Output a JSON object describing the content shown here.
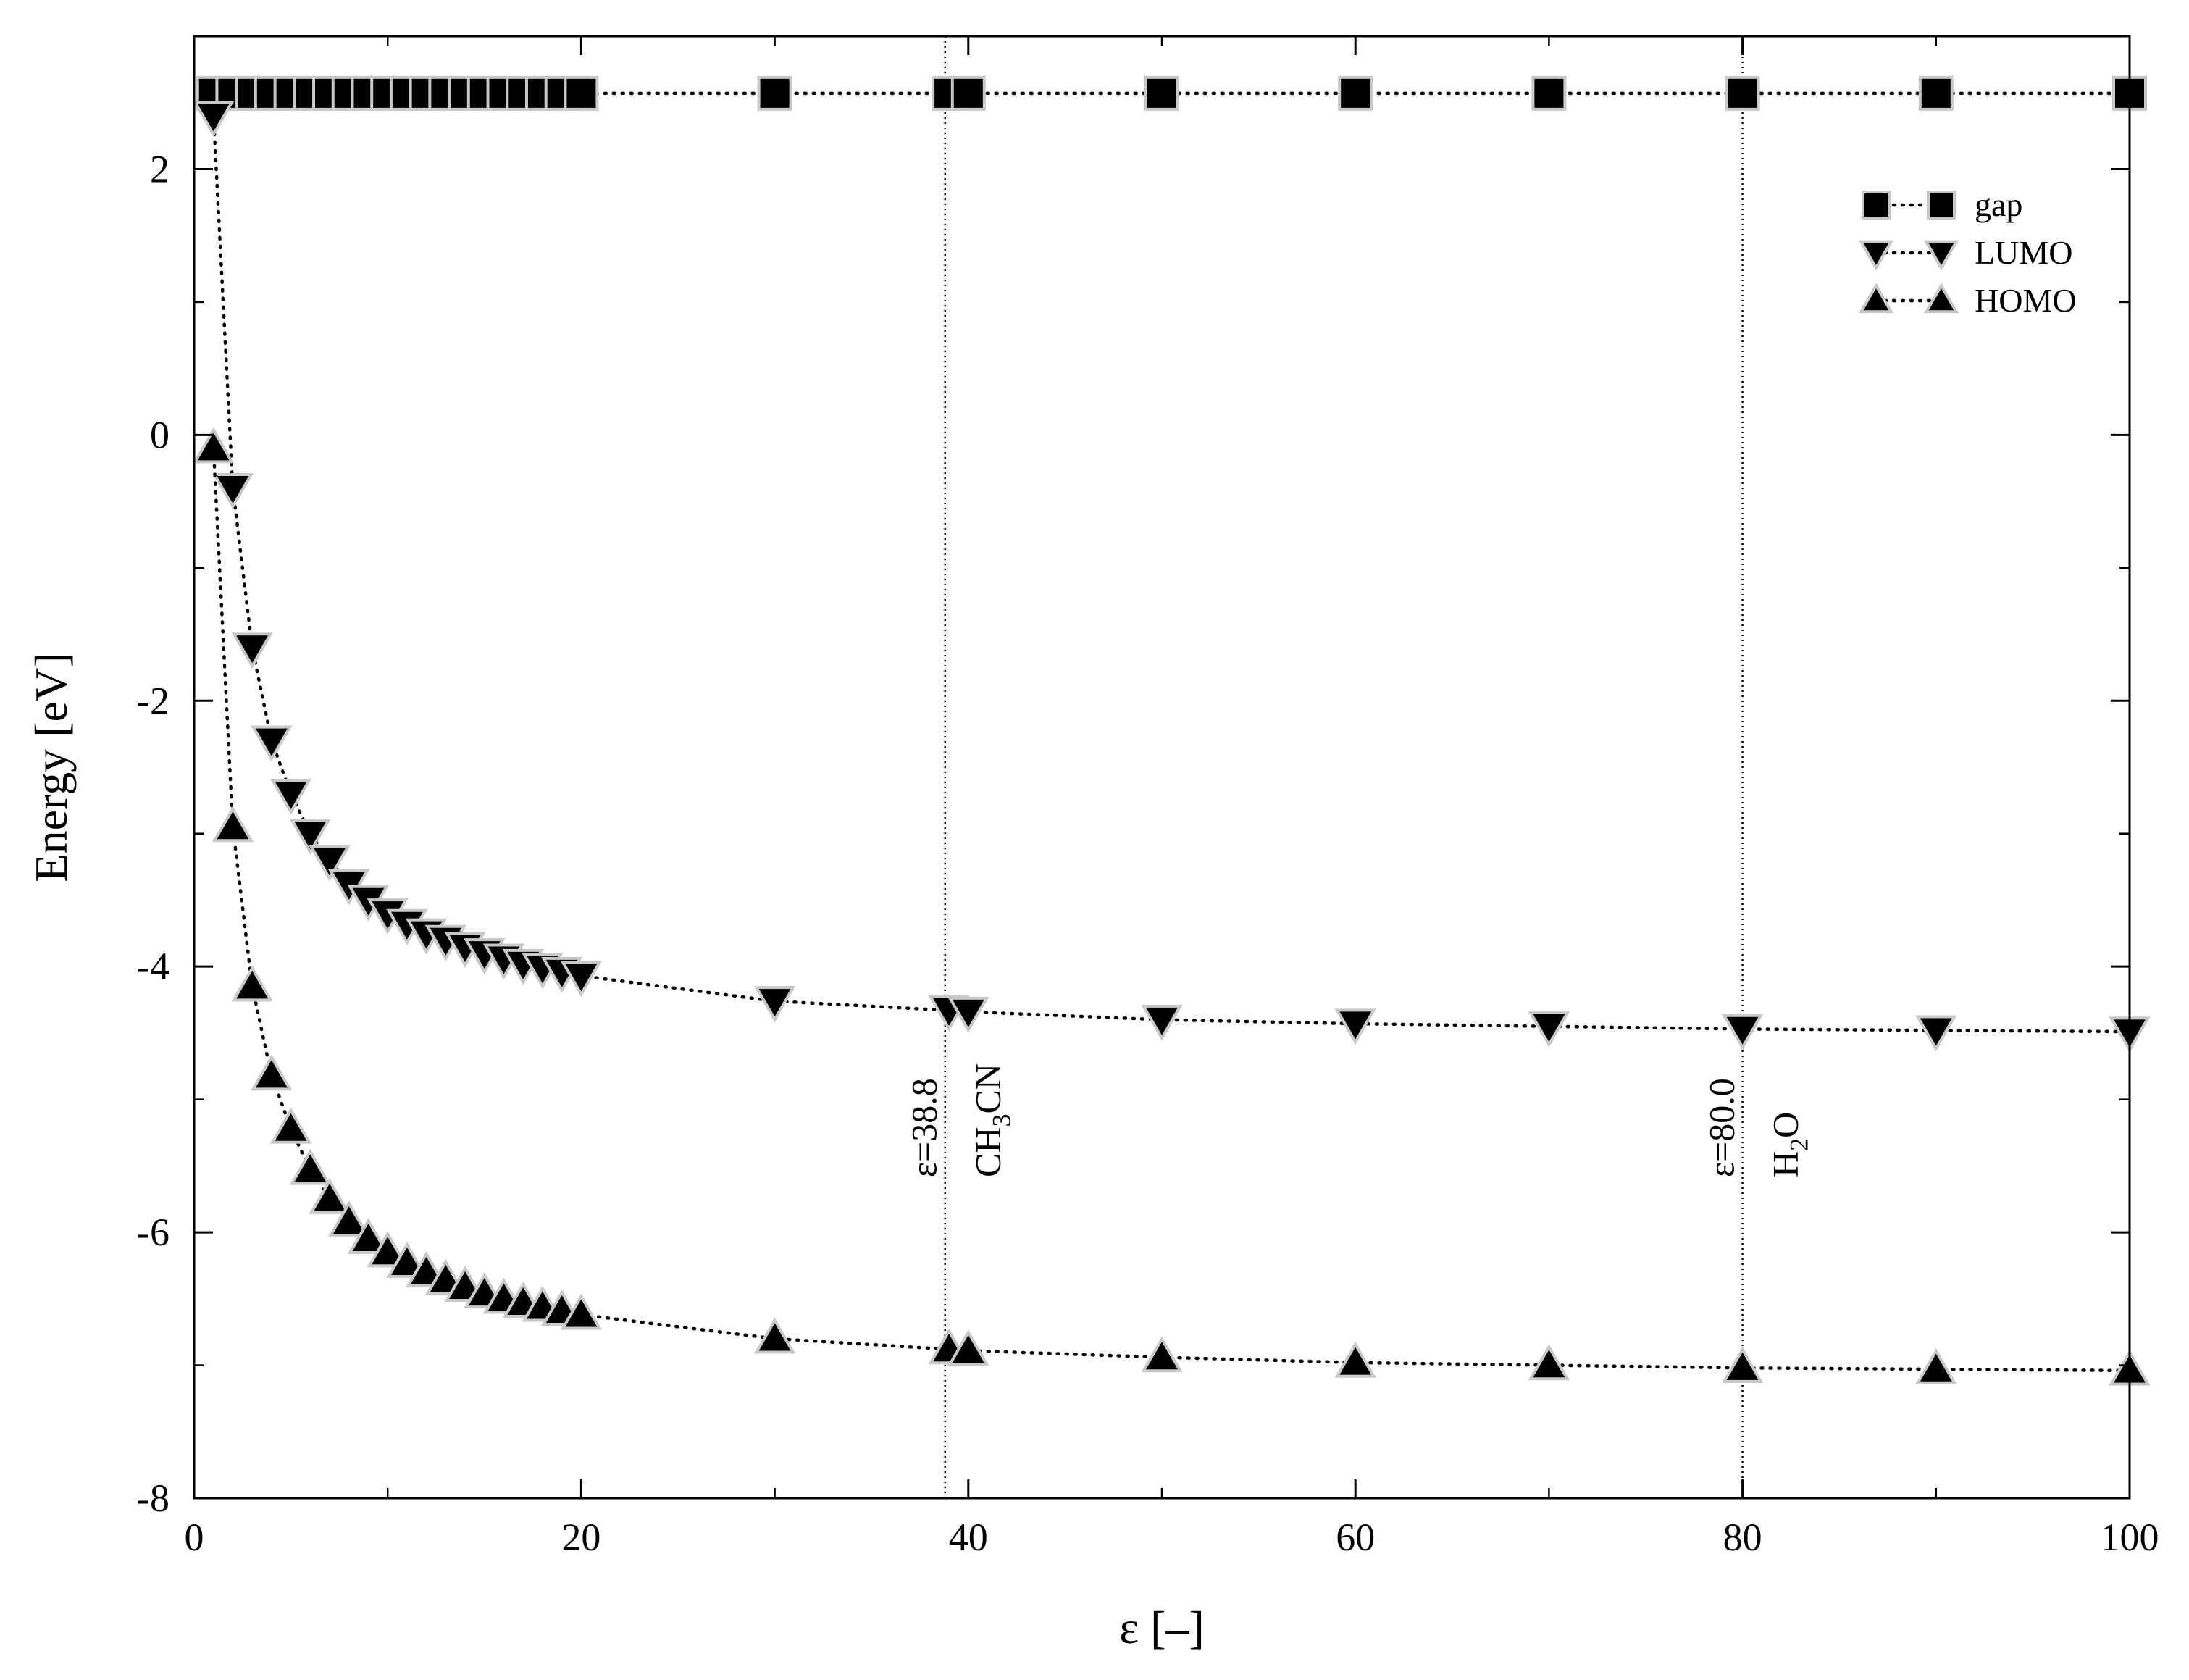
{
  "chart_data": {
    "type": "scatter",
    "xlabel": "ε [–]",
    "ylabel": "Energy [eV]",
    "xlim": [
      0,
      100
    ],
    "ylim": [
      -8,
      3
    ],
    "xticks": [
      0,
      20,
      40,
      60,
      80,
      100
    ],
    "yticks": [
      -8,
      -6,
      -4,
      -2,
      0,
      2
    ],
    "grid": false,
    "legend_position": "top-right",
    "line_style": "dotted",
    "series": [
      {
        "name": "gap",
        "marker": "square",
        "x": [
          1,
          2,
          3,
          4,
          5,
          6,
          7,
          8,
          9,
          10,
          11,
          12,
          13,
          14,
          15,
          16,
          17,
          18,
          19,
          20,
          30,
          39,
          40,
          50,
          60,
          70,
          80,
          90,
          100
        ],
        "y": [
          2.57,
          2.57,
          2.57,
          2.57,
          2.57,
          2.57,
          2.57,
          2.57,
          2.57,
          2.57,
          2.57,
          2.57,
          2.57,
          2.57,
          2.57,
          2.57,
          2.57,
          2.57,
          2.57,
          2.57,
          2.57,
          2.57,
          2.57,
          2.57,
          2.57,
          2.57,
          2.57,
          2.57,
          2.57
        ]
      },
      {
        "name": "LUMO",
        "marker": "triangle-down",
        "x": [
          1,
          2,
          3,
          4,
          5,
          6,
          7,
          8,
          9,
          10,
          11,
          12,
          13,
          14,
          15,
          16,
          17,
          18,
          19,
          20,
          30,
          39,
          40,
          50,
          60,
          70,
          80,
          90,
          100
        ],
        "y": [
          2.4,
          -0.4,
          -1.6,
          -2.3,
          -2.7,
          -3.0,
          -3.2,
          -3.38,
          -3.5,
          -3.6,
          -3.68,
          -3.75,
          -3.8,
          -3.85,
          -3.9,
          -3.94,
          -3.98,
          -4.01,
          -4.04,
          -4.07,
          -4.26,
          -4.33,
          -4.34,
          -4.4,
          -4.43,
          -4.45,
          -4.47,
          -4.48,
          -4.49
        ]
      },
      {
        "name": "HOMO",
        "marker": "triangle-up",
        "x": [
          1,
          2,
          3,
          4,
          5,
          6,
          7,
          8,
          9,
          10,
          11,
          12,
          13,
          14,
          15,
          16,
          17,
          18,
          19,
          20,
          30,
          39,
          40,
          50,
          60,
          70,
          80,
          90,
          100
        ],
        "y": [
          -0.1,
          -2.95,
          -4.15,
          -4.82,
          -5.22,
          -5.53,
          -5.75,
          -5.92,
          -6.05,
          -6.15,
          -6.23,
          -6.3,
          -6.36,
          -6.41,
          -6.46,
          -6.5,
          -6.53,
          -6.56,
          -6.59,
          -6.62,
          -6.8,
          -6.88,
          -6.89,
          -6.94,
          -6.98,
          -7.0,
          -7.02,
          -7.03,
          -7.04
        ]
      }
    ],
    "reference_lines": [
      {
        "x": 38.8,
        "label_value": "ε=38.8",
        "label_solvent": "CH3CN",
        "solvent_base": "CH",
        "solvent_sub": "3",
        "solvent_tail": "CN"
      },
      {
        "x": 80.0,
        "label_value": "ε=80.0",
        "label_solvent": "H2O",
        "solvent_base": "H",
        "solvent_sub": "2",
        "solvent_tail": "O"
      }
    ]
  }
}
